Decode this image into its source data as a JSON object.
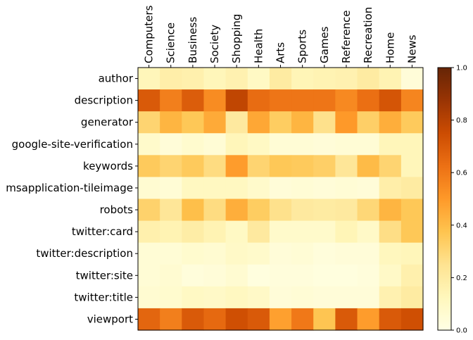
{
  "chart_data": {
    "type": "heatmap",
    "title": "",
    "xlabel": "",
    "ylabel": "",
    "x_categories": [
      "Computers",
      "Science",
      "Business",
      "Society",
      "Shopping",
      "Health",
      "Arts",
      "Sports",
      "Games",
      "Reference",
      "Recreation",
      "Home",
      "News"
    ],
    "y_categories": [
      "author",
      "description",
      "generator",
      "google-site-verification",
      "keywords",
      "msapplication-tileimage",
      "robots",
      "twitter:card",
      "twitter:description",
      "twitter:site",
      "twitter:title",
      "viewport"
    ],
    "values": [
      [
        0.13,
        0.18,
        0.17,
        0.13,
        0.16,
        0.1,
        0.2,
        0.14,
        0.15,
        0.16,
        0.2,
        0.15,
        0.04
      ],
      [
        0.7,
        0.58,
        0.69,
        0.54,
        0.78,
        0.64,
        0.61,
        0.61,
        0.61,
        0.55,
        0.63,
        0.72,
        0.56
      ],
      [
        0.31,
        0.42,
        0.36,
        0.45,
        0.21,
        0.46,
        0.34,
        0.42,
        0.26,
        0.5,
        0.33,
        0.44,
        0.35
      ],
      [
        0.08,
        0.04,
        0.07,
        0.05,
        0.13,
        0.1,
        0.05,
        0.05,
        0.04,
        0.05,
        0.05,
        0.13,
        0.13
      ],
      [
        0.35,
        0.31,
        0.35,
        0.28,
        0.49,
        0.31,
        0.36,
        0.35,
        0.33,
        0.23,
        0.4,
        0.31,
        0.13
      ],
      [
        0.06,
        0.05,
        0.11,
        0.11,
        0.11,
        0.08,
        0.04,
        0.05,
        0.04,
        0.05,
        0.04,
        0.18,
        0.2
      ],
      [
        0.32,
        0.23,
        0.39,
        0.28,
        0.44,
        0.34,
        0.26,
        0.21,
        0.2,
        0.21,
        0.3,
        0.42,
        0.36
      ],
      [
        0.17,
        0.15,
        0.19,
        0.15,
        0.1,
        0.21,
        0.08,
        0.08,
        0.08,
        0.14,
        0.09,
        0.27,
        0.36
      ],
      [
        0.05,
        0.05,
        0.07,
        0.06,
        0.09,
        0.08,
        0.04,
        0.05,
        0.03,
        0.04,
        0.04,
        0.12,
        0.13
      ],
      [
        0.05,
        0.06,
        0.03,
        0.04,
        0.06,
        0.02,
        0.03,
        0.03,
        0.02,
        0.02,
        0.03,
        0.09,
        0.17
      ],
      [
        0.06,
        0.07,
        0.1,
        0.09,
        0.11,
        0.09,
        0.04,
        0.05,
        0.04,
        0.04,
        0.04,
        0.16,
        0.2
      ],
      [
        0.66,
        0.58,
        0.7,
        0.65,
        0.74,
        0.7,
        0.48,
        0.6,
        0.37,
        0.7,
        0.49,
        0.7,
        0.74
      ]
    ],
    "colormap": "YlOrBr",
    "colorbar": {
      "min": 0.0,
      "max": 1.0,
      "ticks": [
        0.0,
        0.2,
        0.4,
        0.6,
        0.8,
        1.0
      ],
      "tick_labels": [
        "0.0",
        "0.2",
        "0.4",
        "0.6",
        "0.8",
        "1.0"
      ]
    },
    "grid": false,
    "x_tick_position": "top"
  }
}
